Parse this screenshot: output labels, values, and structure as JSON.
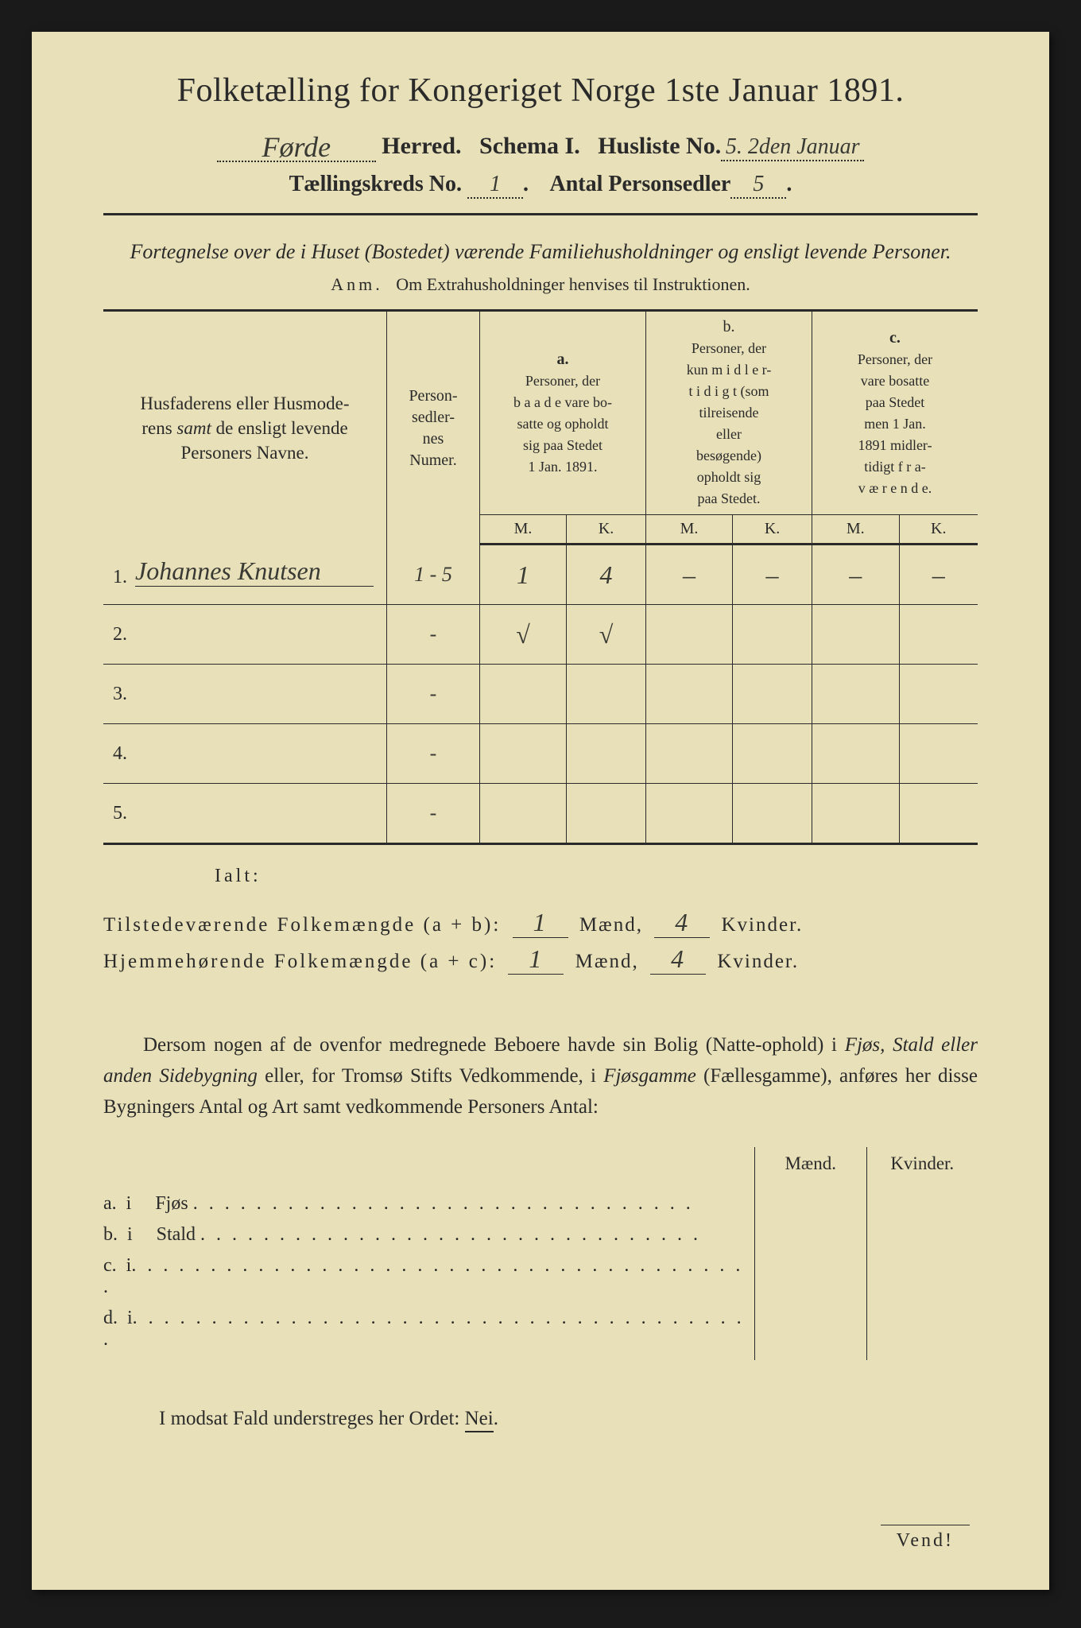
{
  "colors": {
    "paper": "#e8e0b8",
    "ink": "#2a2a2a",
    "handwriting": "#3a3a35",
    "background": "#1a1a1a"
  },
  "title": "Folketælling for Kongeriget Norge 1ste Januar 1891.",
  "header": {
    "herred_value": "Førde",
    "herred_label": "Herred.",
    "schema_label": "Schema I.",
    "husliste_label": "Husliste No.",
    "husliste_value": "5. 2den Januar",
    "kreds_label": "Tællingskreds No.",
    "kreds_value": "1",
    "antal_label": "Antal Personsedler",
    "antal_value": "5"
  },
  "subtitle": "Fortegnelse over de i Huset (Bostedet) værende Familiehusholdninger og ensligt levende Personer.",
  "note_label": "Anm.",
  "note_text": "Om Extrahusholdninger henvises til Instruktionen.",
  "table": {
    "col_name": "Husfaderens eller Husmoderens samt de ensligt levende Personers Navne.",
    "col_num": "Personsedlernes Numer.",
    "col_a_tag": "a.",
    "col_a": "Personer, der baade vare bosatte og opholdt sig paa Stedet 1 Jan. 1891.",
    "col_b_tag": "b.",
    "col_b": "Personer, der kun midlertidigt (som tilreisende eller besøgende) opholdt sig paa Stedet.",
    "col_c_tag": "c.",
    "col_c": "Personer, der vare bosatte paa Stedet men 1 Jan. 1891 midlertidigt fraværende.",
    "m": "M.",
    "k": "K.",
    "rows": [
      {
        "n": "1.",
        "name": "Johannes Knutsen",
        "num": "1 - 5",
        "am": "1",
        "ak": "4",
        "bm": "–",
        "bk": "–",
        "cm": "–",
        "ck": "–"
      },
      {
        "n": "2.",
        "name": "",
        "num": "-",
        "am": "√",
        "ak": "√",
        "bm": "",
        "bk": "",
        "cm": "",
        "ck": ""
      },
      {
        "n": "3.",
        "name": "",
        "num": "-",
        "am": "",
        "ak": "",
        "bm": "",
        "bk": "",
        "cm": "",
        "ck": ""
      },
      {
        "n": "4.",
        "name": "",
        "num": "-",
        "am": "",
        "ak": "",
        "bm": "",
        "bk": "",
        "cm": "",
        "ck": ""
      },
      {
        "n": "5.",
        "name": "",
        "num": "-",
        "am": "",
        "ak": "",
        "bm": "",
        "bk": "",
        "cm": "",
        "ck": ""
      }
    ]
  },
  "ialt": "Ialt:",
  "summary": {
    "line1_label": "Tilstedeværende Folkemængde (a + b):",
    "line2_label": "Hjemmehørende Folkemængde (a + c):",
    "maend": "Mænd,",
    "kvinder": "Kvinder.",
    "v1m": "1",
    "v1k": "4",
    "v2m": "1",
    "v2k": "4"
  },
  "paragraph": "Dersom nogen af de ovenfor medregnede Beboere havde sin Bolig (Natteophold) i Fjøs, Stald eller anden Sidebygning eller, for Tromsø Stifts Vedkommende, i Fjøsgamme (Fællesgamme), anføres her disse Bygningers Antal og Art samt vedkommende Personers Antal:",
  "buildings": {
    "maend": "Mænd.",
    "kvinder": "Kvinder.",
    "rows": [
      {
        "tag": "a.",
        "i": "i",
        "label": "Fjøs"
      },
      {
        "tag": "b.",
        "i": "i",
        "label": "Stald"
      },
      {
        "tag": "c.",
        "i": "i",
        "label": ""
      },
      {
        "tag": "d.",
        "i": "i",
        "label": ""
      }
    ]
  },
  "closing_pre": "I modsat Fald understreges her Ordet: ",
  "closing_nei": "Nei",
  "closing_post": ".",
  "vend": "Vend!"
}
